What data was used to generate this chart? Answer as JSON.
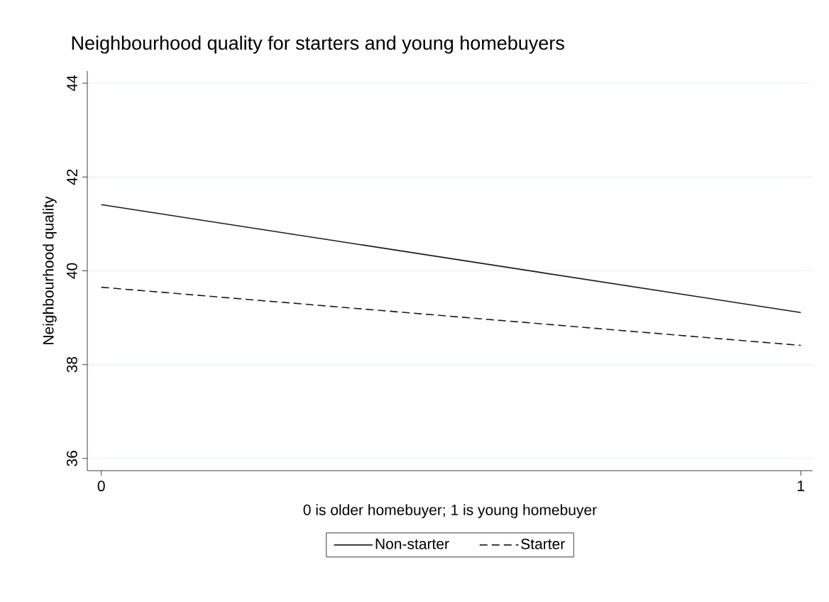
{
  "chart_data": {
    "type": "line",
    "title": "Neighbourhood quality for starters and young homebuyers",
    "xlabel": "0 is older homebuyer; 1 is young homebuyer",
    "ylabel": "Neighbourhood quality",
    "x": [
      0,
      1
    ],
    "series": [
      {
        "name": "Non-starter",
        "color": "#1a1a1a",
        "values": [
          41.41,
          39.11
        ],
        "line_style": "solid"
      },
      {
        "name": "Starter",
        "color": "#1a1a1a",
        "values": [
          39.65,
          38.41
        ],
        "line_style": "dashed"
      }
    ],
    "xlim": [
      -0.02,
      1.017
    ],
    "ylim": [
      35.74,
      44.26
    ],
    "xticks": [
      0,
      1
    ],
    "yticks": [
      36,
      38,
      40,
      42,
      44
    ],
    "grid": "y",
    "legend": "bottom"
  }
}
